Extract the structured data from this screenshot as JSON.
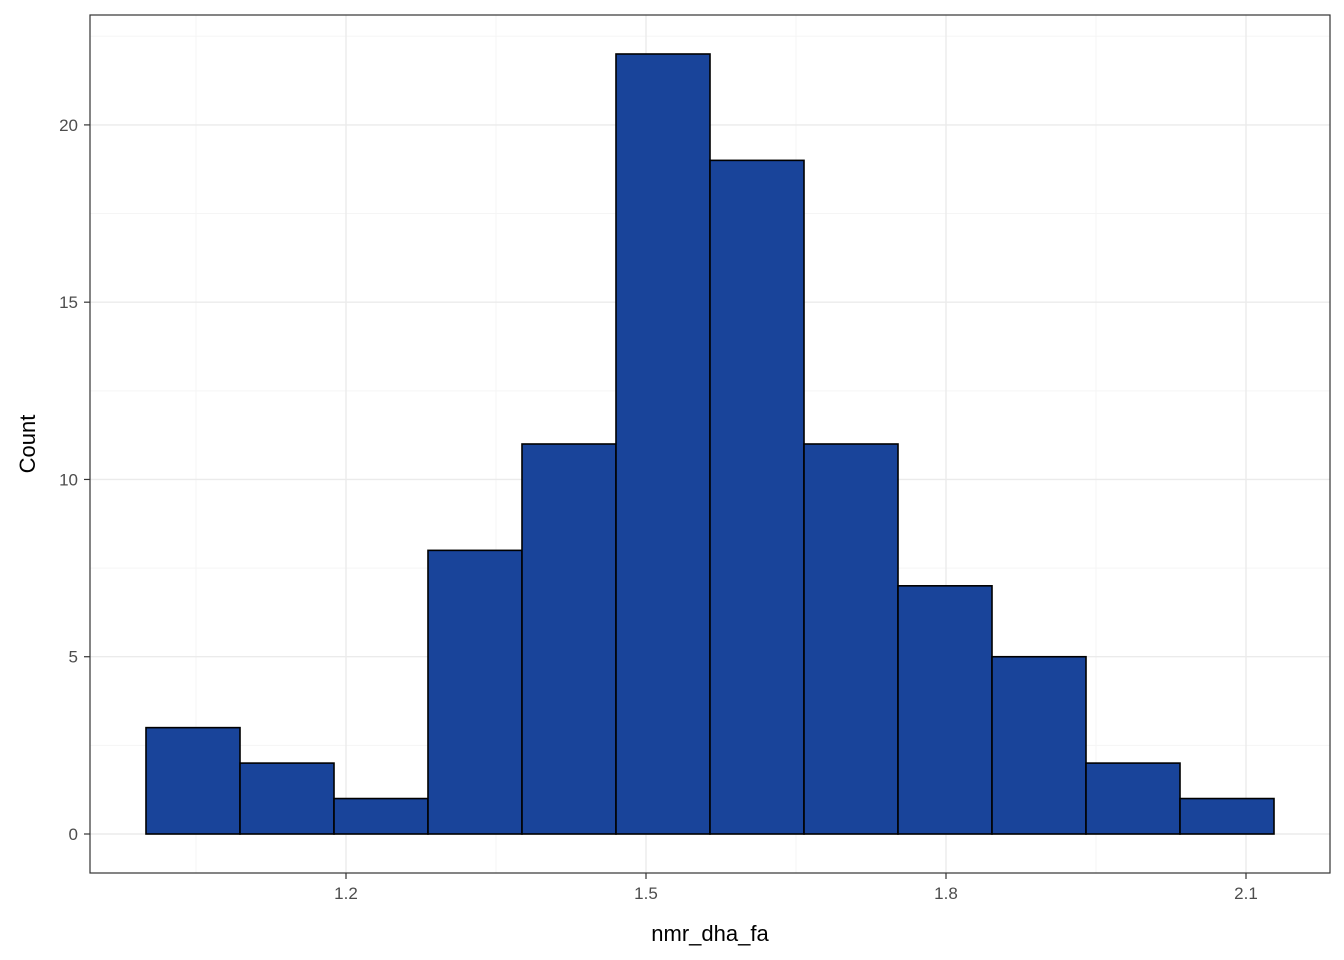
{
  "chart_data": {
    "type": "bar",
    "subtype": "histogram",
    "title": "",
    "xlabel": "nmr_dha_fa",
    "ylabel": "Count",
    "bin_width": 0.094,
    "bins": [
      {
        "x0": 1.0,
        "x1": 1.094,
        "count": 3
      },
      {
        "x0": 1.094,
        "x1": 1.188,
        "count": 2
      },
      {
        "x0": 1.188,
        "x1": 1.282,
        "count": 1
      },
      {
        "x0": 1.282,
        "x1": 1.376,
        "count": 8
      },
      {
        "x0": 1.376,
        "x1": 1.47,
        "count": 11
      },
      {
        "x0": 1.47,
        "x1": 1.564,
        "count": 22
      },
      {
        "x0": 1.564,
        "x1": 1.658,
        "count": 19
      },
      {
        "x0": 1.658,
        "x1": 1.752,
        "count": 11
      },
      {
        "x0": 1.752,
        "x1": 1.846,
        "count": 7
      },
      {
        "x0": 1.846,
        "x1": 1.94,
        "count": 5
      },
      {
        "x0": 1.94,
        "x1": 2.034,
        "count": 2
      },
      {
        "x0": 2.034,
        "x1": 2.128,
        "count": 1
      }
    ],
    "xlim": [
      0.944,
      2.184
    ],
    "ylim": [
      -1.1,
      23.1
    ],
    "x_ticks": [
      1.2,
      1.5,
      1.8,
      2.1
    ],
    "x_tick_labels": [
      "1.2",
      "1.5",
      "1.8",
      "2.1"
    ],
    "x_minor_ticks": [
      1.05,
      1.35,
      1.65,
      1.95
    ],
    "y_ticks": [
      0,
      5,
      10,
      15,
      20
    ],
    "y_tick_labels": [
      "0",
      "5",
      "10",
      "15",
      "20"
    ],
    "y_minor_ticks": [
      2.5,
      7.5,
      12.5,
      17.5,
      22.5
    ],
    "grid": true,
    "legend": "none",
    "colors": {
      "bar_fill": "#19449A",
      "bar_stroke": "#000000",
      "panel_border": "#333333",
      "grid_major": "#EBEBEB",
      "grid_minor": "#F5F5F5",
      "tick_label": "#4D4D4D",
      "axis_title": "#000000"
    }
  }
}
